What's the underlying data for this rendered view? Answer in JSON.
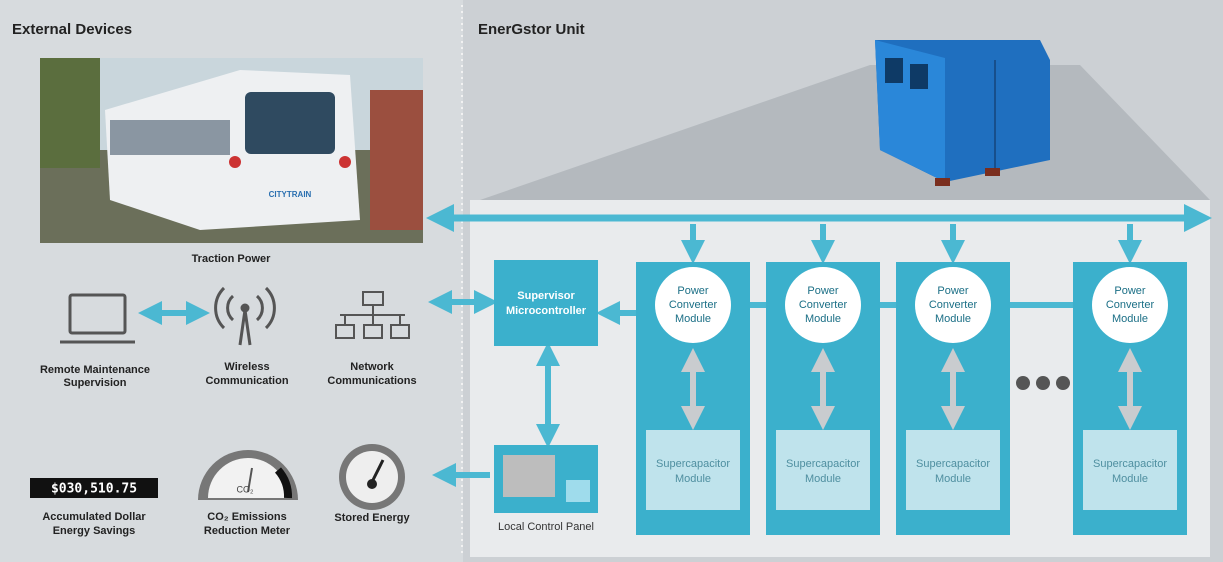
{
  "sections": {
    "external": "External Devices",
    "unit": "EnerGstor Unit"
  },
  "devices": {
    "traction": "Traction Power",
    "train_logo": "CITYTRAIN",
    "remote": [
      "Remote Maintenance",
      "Supervision"
    ],
    "wireless": [
      "Wireless",
      "Communication"
    ],
    "network": [
      "Network",
      "Communications"
    ],
    "savings_display": "$030,510.75",
    "savings": [
      "Accumulated Dollar",
      "Energy Savings"
    ],
    "co2_gauge": "CO₂",
    "co2": [
      "CO₂ Emissions",
      "Reduction Meter"
    ],
    "stored": "Stored Energy"
  },
  "unit": {
    "supervisor": [
      "Supervisor",
      "Microcontroller"
    ],
    "panel": "Local Control Panel",
    "modules": [
      {
        "converter": [
          "Power",
          "Converter",
          "Module"
        ],
        "supercap": [
          "Supercapacitor",
          "Module"
        ]
      },
      {
        "converter": [
          "Power",
          "Converter",
          "Module"
        ],
        "supercap": [
          "Supercapacitor",
          "Module"
        ]
      },
      {
        "converter": [
          "Power",
          "Converter",
          "Module"
        ],
        "supercap": [
          "Supercapacitor",
          "Module"
        ]
      },
      {
        "converter": [
          "Power",
          "Converter",
          "Module"
        ],
        "supercap": [
          "Supercapacitor",
          "Module"
        ]
      }
    ]
  }
}
